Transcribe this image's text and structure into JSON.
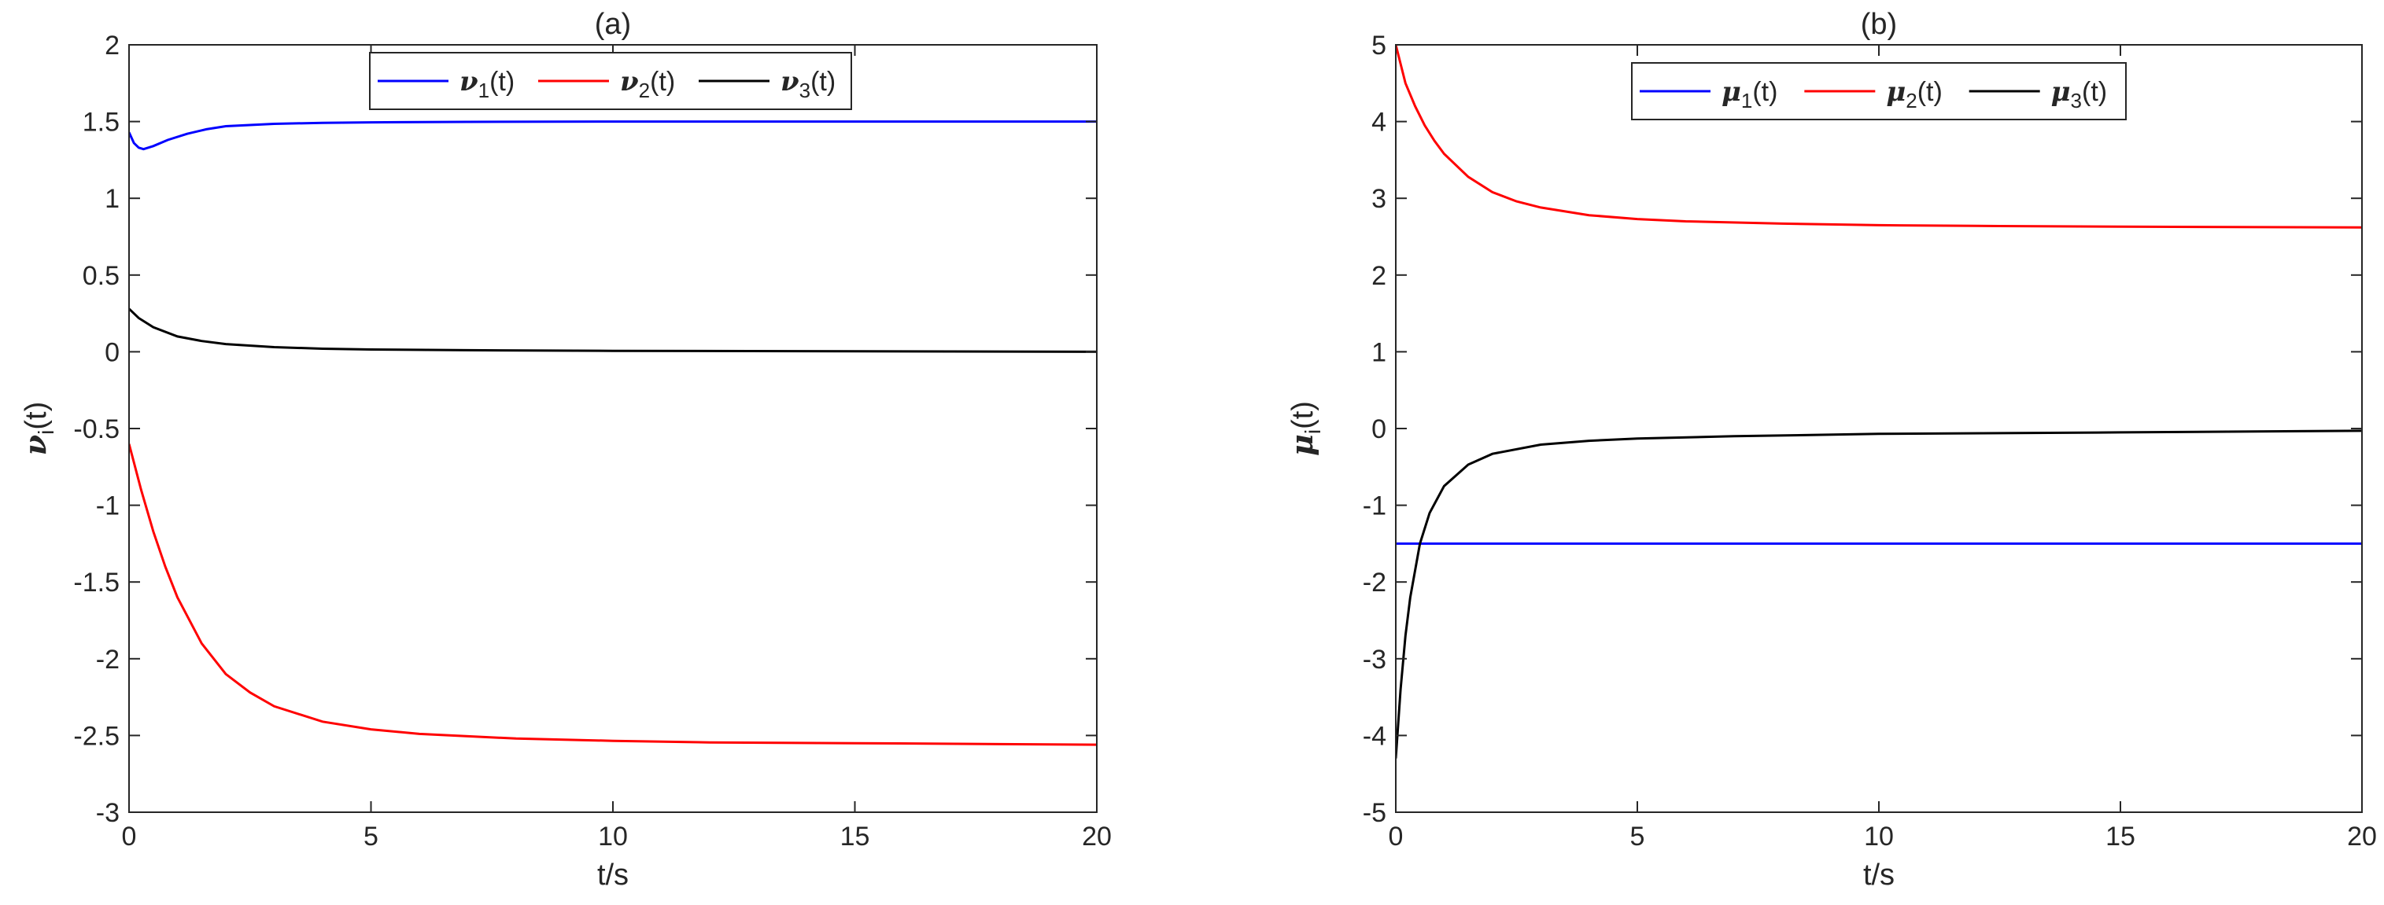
{
  "chart_data": [
    {
      "type": "line",
      "panel_label": "(a)",
      "xlabel": "t/s",
      "ylabel": {
        "symbol": "ν",
        "subscript": "i",
        "suffix": "(t)"
      },
      "xlim": [
        0,
        20
      ],
      "ylim": [
        -3,
        2
      ],
      "xticks": [
        "0",
        "5",
        "10",
        "15",
        "20"
      ],
      "yticks": [
        "-3",
        "-2.5",
        "-2",
        "-1.5",
        "-1",
        "-0.5",
        "0",
        "0.5",
        "1",
        "1.5",
        "2"
      ],
      "grid": false,
      "legend_placement": "top-center, horizontal",
      "series": [
        {
          "name": {
            "symbol": "ν",
            "subscript": "1",
            "suffix": "(t)"
          },
          "color": "#0000ff",
          "x": [
            0,
            0.1,
            0.2,
            0.3,
            0.5,
            0.8,
            1.2,
            1.6,
            2,
            3,
            4,
            5,
            7,
            10,
            15,
            20
          ],
          "y": [
            1.43,
            1.36,
            1.33,
            1.32,
            1.34,
            1.38,
            1.42,
            1.45,
            1.47,
            1.485,
            1.492,
            1.495,
            1.498,
            1.5,
            1.5,
            1.5
          ]
        },
        {
          "name": {
            "symbol": "ν",
            "subscript": "2",
            "suffix": "(t)"
          },
          "color": "#ff0000",
          "x": [
            0,
            0.25,
            0.5,
            0.75,
            1,
            1.5,
            2,
            2.5,
            3,
            4,
            5,
            6,
            8,
            10,
            12,
            15,
            20
          ],
          "y": [
            -0.6,
            -0.9,
            -1.17,
            -1.4,
            -1.6,
            -1.9,
            -2.1,
            -2.22,
            -2.31,
            -2.41,
            -2.46,
            -2.49,
            -2.52,
            -2.535,
            -2.545,
            -2.55,
            -2.56
          ]
        },
        {
          "name": {
            "symbol": "ν",
            "subscript": "3",
            "suffix": "(t)"
          },
          "color": "#000000",
          "x": [
            0,
            0.2,
            0.5,
            1,
            1.5,
            2,
            3,
            4,
            5,
            7,
            10,
            15,
            20
          ],
          "y": [
            0.28,
            0.22,
            0.16,
            0.1,
            0.07,
            0.05,
            0.03,
            0.02,
            0.015,
            0.01,
            0.006,
            0.003,
            0.0
          ]
        }
      ]
    },
    {
      "type": "line",
      "panel_label": "(b)",
      "xlabel": "t/s",
      "ylabel": {
        "symbol": "μ",
        "subscript": "i",
        "suffix": "(t)"
      },
      "xlim": [
        0,
        20
      ],
      "ylim": [
        -5,
        5
      ],
      "xticks": [
        "0",
        "5",
        "10",
        "15",
        "20"
      ],
      "yticks": [
        "-5",
        "-4",
        "-3",
        "-2",
        "-1",
        "0",
        "1",
        "2",
        "3",
        "4",
        "5"
      ],
      "grid": false,
      "legend_placement": "top-center, horizontal",
      "series": [
        {
          "name": {
            "symbol": "μ",
            "subscript": "1",
            "suffix": "(t)"
          },
          "color": "#0000ff",
          "x": [
            0,
            20
          ],
          "y": [
            -1.5,
            -1.5
          ]
        },
        {
          "name": {
            "symbol": "μ",
            "subscript": "2",
            "suffix": "(t)"
          },
          "color": "#ff0000",
          "x": [
            0,
            0.2,
            0.4,
            0.6,
            0.8,
            1,
            1.5,
            2,
            2.5,
            3,
            4,
            5,
            6,
            8,
            10,
            12,
            15,
            20
          ],
          "y": [
            5.0,
            4.5,
            4.2,
            3.95,
            3.75,
            3.58,
            3.28,
            3.08,
            2.96,
            2.88,
            2.78,
            2.73,
            2.7,
            2.67,
            2.65,
            2.64,
            2.63,
            2.62
          ]
        },
        {
          "name": {
            "symbol": "μ",
            "subscript": "3",
            "suffix": "(t)"
          },
          "color": "#000000",
          "x": [
            0,
            0.1,
            0.2,
            0.3,
            0.5,
            0.7,
            1,
            1.5,
            2,
            3,
            4,
            5,
            7,
            10,
            15,
            20
          ],
          "y": [
            -4.3,
            -3.4,
            -2.7,
            -2.2,
            -1.5,
            -1.1,
            -0.75,
            -0.47,
            -0.33,
            -0.21,
            -0.16,
            -0.13,
            -0.1,
            -0.07,
            -0.05,
            -0.03
          ]
        }
      ]
    }
  ]
}
